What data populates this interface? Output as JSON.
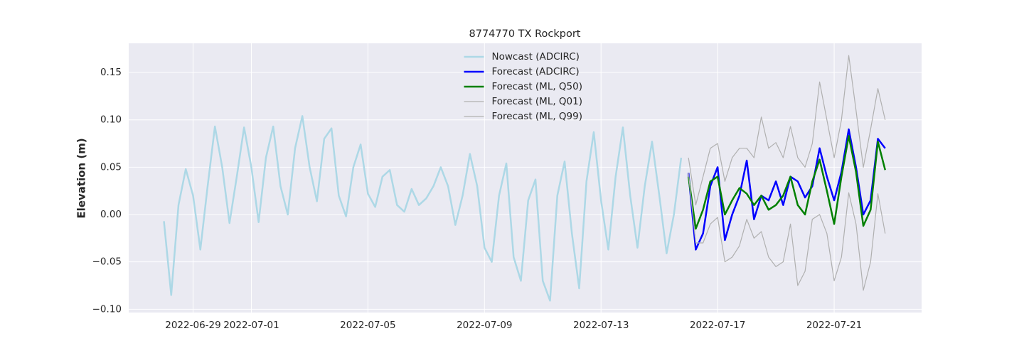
{
  "chart_data": {
    "type": "line",
    "title": "8774770 TX Rockport",
    "ylabel": "Elevation (m)",
    "xlim": [
      "2022-06-26 19:00",
      "2022-07-24 00:00"
    ],
    "xticks": [
      "2022-06-29",
      "2022-07-01",
      "2022-07-05",
      "2022-07-09",
      "2022-07-13",
      "2022-07-17",
      "2022-07-21"
    ],
    "ylim": [
      -0.1035,
      0.1808
    ],
    "yticks": [
      {
        "value": -0.1,
        "label": "−0.10"
      },
      {
        "value": -0.05,
        "label": "−0.05"
      },
      {
        "value": 0,
        "label": "0.00"
      },
      0.05,
      {
        "value": 0.1,
        "label": "0.10"
      },
      0.15
    ],
    "grid": true,
    "legend": "upper center",
    "series": [
      {
        "name": "Nowcast (ADCIRC)",
        "color": "#add8e6",
        "width": 2.5,
        "x": [
          "2022-06-28 00:00",
          "2022-06-28 06:00",
          "2022-06-28 12:00",
          "2022-06-28 18:00",
          "2022-06-29 00:00",
          "2022-06-29 06:00",
          "2022-06-29 12:00",
          "2022-06-29 18:00",
          "2022-06-30 00:00",
          "2022-06-30 06:00",
          "2022-06-30 12:00",
          "2022-06-30 18:00",
          "2022-07-01 00:00",
          "2022-07-01 06:00",
          "2022-07-01 12:00",
          "2022-07-01 18:00",
          "2022-07-02 00:00",
          "2022-07-02 06:00",
          "2022-07-02 12:00",
          "2022-07-02 18:00",
          "2022-07-03 00:00",
          "2022-07-03 06:00",
          "2022-07-03 12:00",
          "2022-07-03 18:00",
          "2022-07-04 00:00",
          "2022-07-04 06:00",
          "2022-07-04 12:00",
          "2022-07-04 18:00",
          "2022-07-05 00:00",
          "2022-07-05 06:00",
          "2022-07-05 12:00",
          "2022-07-05 18:00",
          "2022-07-06 00:00",
          "2022-07-06 06:00",
          "2022-07-06 12:00",
          "2022-07-06 18:00",
          "2022-07-07 00:00",
          "2022-07-07 06:00",
          "2022-07-07 12:00",
          "2022-07-07 18:00",
          "2022-07-08 00:00",
          "2022-07-08 06:00",
          "2022-07-08 12:00",
          "2022-07-08 18:00",
          "2022-07-09 00:00",
          "2022-07-09 06:00",
          "2022-07-09 12:00",
          "2022-07-09 18:00",
          "2022-07-10 00:00",
          "2022-07-10 06:00",
          "2022-07-10 12:00",
          "2022-07-10 18:00",
          "2022-07-11 00:00",
          "2022-07-11 06:00",
          "2022-07-11 12:00",
          "2022-07-11 18:00",
          "2022-07-12 00:00",
          "2022-07-12 06:00",
          "2022-07-12 12:00",
          "2022-07-12 18:00",
          "2022-07-13 00:00",
          "2022-07-13 06:00",
          "2022-07-13 12:00",
          "2022-07-13 18:00",
          "2022-07-14 00:00",
          "2022-07-14 06:00",
          "2022-07-14 12:00",
          "2022-07-14 18:00",
          "2022-07-15 00:00",
          "2022-07-15 06:00",
          "2022-07-15 12:00",
          "2022-07-15 18:00"
        ],
        "values": [
          -0.007,
          -0.085,
          0.01,
          0.048,
          0.02,
          -0.037,
          0.03,
          0.093,
          0.05,
          -0.009,
          0.04,
          0.092,
          0.05,
          -0.008,
          0.06,
          0.093,
          0.03,
          0.0,
          0.07,
          0.104,
          0.05,
          0.014,
          0.08,
          0.091,
          0.02,
          -0.002,
          0.05,
          0.074,
          0.022,
          0.008,
          0.04,
          0.047,
          0.01,
          0.003,
          0.027,
          0.01,
          0.017,
          0.03,
          0.05,
          0.03,
          -0.011,
          0.02,
          0.064,
          0.03,
          -0.035,
          -0.05,
          0.02,
          0.054,
          -0.045,
          -0.07,
          0.015,
          0.037,
          -0.07,
          -0.091,
          0.02,
          0.056,
          -0.02,
          -0.078,
          0.035,
          0.087,
          0.015,
          -0.037,
          0.04,
          0.092,
          0.02,
          -0.035,
          0.03,
          0.077,
          0.02,
          -0.041,
          0.0,
          0.06
        ]
      },
      {
        "name": "Forecast (ADCIRC)",
        "color": "#0000ff",
        "width": 2.5,
        "x": [
          "2022-07-16 00:00",
          "2022-07-16 06:00",
          "2022-07-16 12:00",
          "2022-07-16 18:00",
          "2022-07-17 00:00",
          "2022-07-17 06:00",
          "2022-07-17 12:00",
          "2022-07-17 18:00",
          "2022-07-18 00:00",
          "2022-07-18 06:00",
          "2022-07-18 12:00",
          "2022-07-18 18:00",
          "2022-07-19 00:00",
          "2022-07-19 06:00",
          "2022-07-19 12:00",
          "2022-07-19 18:00",
          "2022-07-20 00:00",
          "2022-07-20 06:00",
          "2022-07-20 12:00",
          "2022-07-20 18:00",
          "2022-07-21 00:00",
          "2022-07-21 06:00",
          "2022-07-21 12:00",
          "2022-07-21 18:00",
          "2022-07-22 00:00",
          "2022-07-22 06:00",
          "2022-07-22 12:00",
          "2022-07-22 18:00"
        ],
        "values": [
          0.044,
          -0.037,
          -0.02,
          0.03,
          0.05,
          -0.027,
          0.0,
          0.02,
          0.057,
          -0.005,
          0.02,
          0.015,
          0.035,
          0.01,
          0.04,
          0.035,
          0.018,
          0.03,
          0.07,
          0.04,
          0.015,
          0.045,
          0.09,
          0.05,
          0.0,
          0.015,
          0.08,
          0.07
        ]
      },
      {
        "name": "Forecast (ML, Q50)",
        "color": "#008000",
        "width": 2.5,
        "x": [
          "2022-07-16 00:00",
          "2022-07-16 06:00",
          "2022-07-16 12:00",
          "2022-07-16 18:00",
          "2022-07-17 00:00",
          "2022-07-17 06:00",
          "2022-07-17 12:00",
          "2022-07-17 18:00",
          "2022-07-18 00:00",
          "2022-07-18 06:00",
          "2022-07-18 12:00",
          "2022-07-18 18:00",
          "2022-07-19 00:00",
          "2022-07-19 06:00",
          "2022-07-19 12:00",
          "2022-07-19 18:00",
          "2022-07-20 00:00",
          "2022-07-20 06:00",
          "2022-07-20 12:00",
          "2022-07-20 18:00",
          "2022-07-21 00:00",
          "2022-07-21 06:00",
          "2022-07-21 12:00",
          "2022-07-21 18:00",
          "2022-07-22 00:00",
          "2022-07-22 06:00",
          "2022-07-22 12:00",
          "2022-07-22 18:00"
        ],
        "values": [
          0.04,
          -0.015,
          0.005,
          0.035,
          0.04,
          0.0,
          0.015,
          0.028,
          0.022,
          0.01,
          0.02,
          0.005,
          0.01,
          0.02,
          0.04,
          0.01,
          0.0,
          0.035,
          0.058,
          0.025,
          -0.01,
          0.04,
          0.083,
          0.045,
          -0.012,
          0.005,
          0.077,
          0.047
        ]
      },
      {
        "name": "Forecast (ML, Q01)",
        "color": "#b0b0b0",
        "width": 1.2,
        "x": [
          "2022-07-16 00:00",
          "2022-07-16 06:00",
          "2022-07-16 12:00",
          "2022-07-16 18:00",
          "2022-07-17 00:00",
          "2022-07-17 06:00",
          "2022-07-17 12:00",
          "2022-07-17 18:00",
          "2022-07-18 00:00",
          "2022-07-18 06:00",
          "2022-07-18 12:00",
          "2022-07-18 18:00",
          "2022-07-19 00:00",
          "2022-07-19 06:00",
          "2022-07-19 12:00",
          "2022-07-19 18:00",
          "2022-07-20 00:00",
          "2022-07-20 06:00",
          "2022-07-20 12:00",
          "2022-07-20 18:00",
          "2022-07-21 00:00",
          "2022-07-21 06:00",
          "2022-07-21 12:00",
          "2022-07-21 18:00",
          "2022-07-22 00:00",
          "2022-07-22 06:00",
          "2022-07-22 12:00",
          "2022-07-22 18:00"
        ],
        "values": [
          0.044,
          -0.03,
          -0.03,
          -0.01,
          -0.003,
          -0.05,
          -0.045,
          -0.033,
          -0.005,
          -0.025,
          -0.018,
          -0.045,
          -0.055,
          -0.05,
          -0.01,
          -0.075,
          -0.06,
          -0.005,
          0.0,
          -0.02,
          -0.07,
          -0.045,
          0.023,
          -0.01,
          -0.08,
          -0.05,
          0.022,
          -0.02
        ]
      },
      {
        "name": "Forecast (ML, Q99)",
        "color": "#b0b0b0",
        "width": 1.2,
        "x": [
          "2022-07-16 00:00",
          "2022-07-16 06:00",
          "2022-07-16 12:00",
          "2022-07-16 18:00",
          "2022-07-17 00:00",
          "2022-07-17 06:00",
          "2022-07-17 12:00",
          "2022-07-17 18:00",
          "2022-07-18 00:00",
          "2022-07-18 06:00",
          "2022-07-18 12:00",
          "2022-07-18 18:00",
          "2022-07-19 00:00",
          "2022-07-19 06:00",
          "2022-07-19 12:00",
          "2022-07-19 18:00",
          "2022-07-20 00:00",
          "2022-07-20 06:00",
          "2022-07-20 12:00",
          "2022-07-20 18:00",
          "2022-07-21 00:00",
          "2022-07-21 06:00",
          "2022-07-21 12:00",
          "2022-07-21 18:00",
          "2022-07-22 00:00",
          "2022-07-22 06:00",
          "2022-07-22 12:00",
          "2022-07-22 18:00"
        ],
        "values": [
          0.06,
          0.01,
          0.04,
          0.07,
          0.075,
          0.035,
          0.06,
          0.07,
          0.07,
          0.06,
          0.103,
          0.07,
          0.076,
          0.06,
          0.093,
          0.06,
          0.05,
          0.075,
          0.14,
          0.1,
          0.06,
          0.1,
          0.168,
          0.11,
          0.05,
          0.09,
          0.133,
          0.1
        ]
      }
    ]
  }
}
